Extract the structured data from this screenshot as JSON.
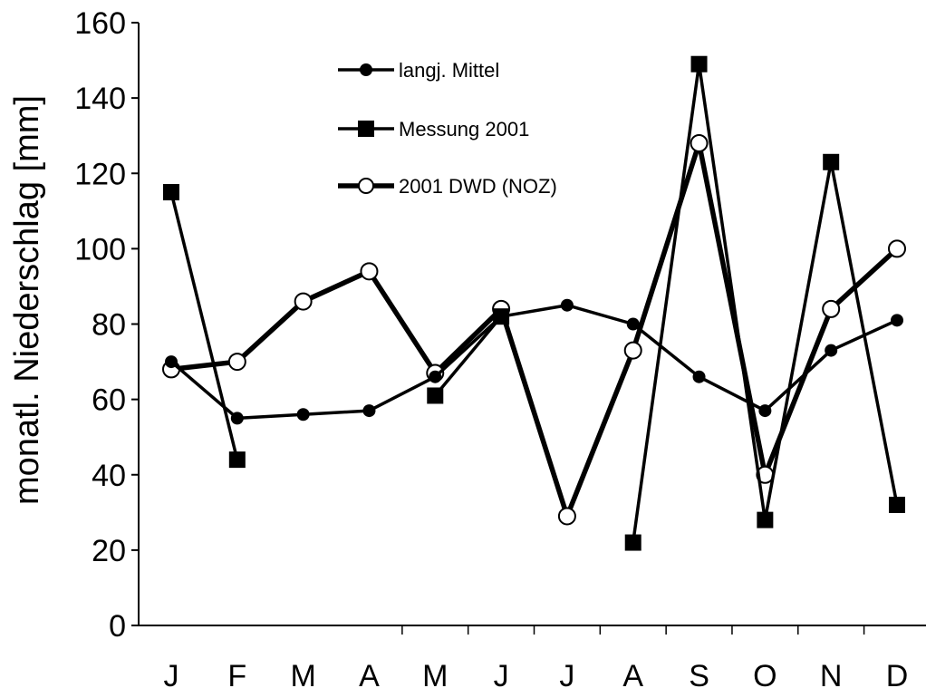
{
  "chart_data": {
    "type": "line",
    "title": "",
    "xlabel": "",
    "ylabel": "monatl. Niederschlag [mm]",
    "ylim": [
      0,
      160
    ],
    "yticks": [
      0,
      20,
      40,
      60,
      80,
      100,
      120,
      140,
      160
    ],
    "categories": [
      "J",
      "F",
      "M",
      "A",
      "M",
      "J",
      "J",
      "A",
      "S",
      "O",
      "N",
      "D"
    ],
    "grid": false,
    "legend_position": "top-center",
    "series": [
      {
        "name": "langj. Mittel",
        "marker": "filled-circle",
        "color": "#000000",
        "values": [
          70,
          55,
          56,
          57,
          66,
          82,
          85,
          80,
          66,
          57,
          73,
          81
        ]
      },
      {
        "name": "Messung 2001",
        "marker": "filled-square",
        "color": "#000000",
        "values": [
          115,
          44,
          null,
          null,
          61,
          82,
          null,
          22,
          149,
          28,
          123,
          32
        ]
      },
      {
        "name": "2001 DWD (NOZ)",
        "marker": "open-circle",
        "color": "#000000",
        "values": [
          68,
          70,
          86,
          94,
          67,
          84,
          29,
          73,
          128,
          40,
          84,
          100
        ]
      }
    ]
  }
}
